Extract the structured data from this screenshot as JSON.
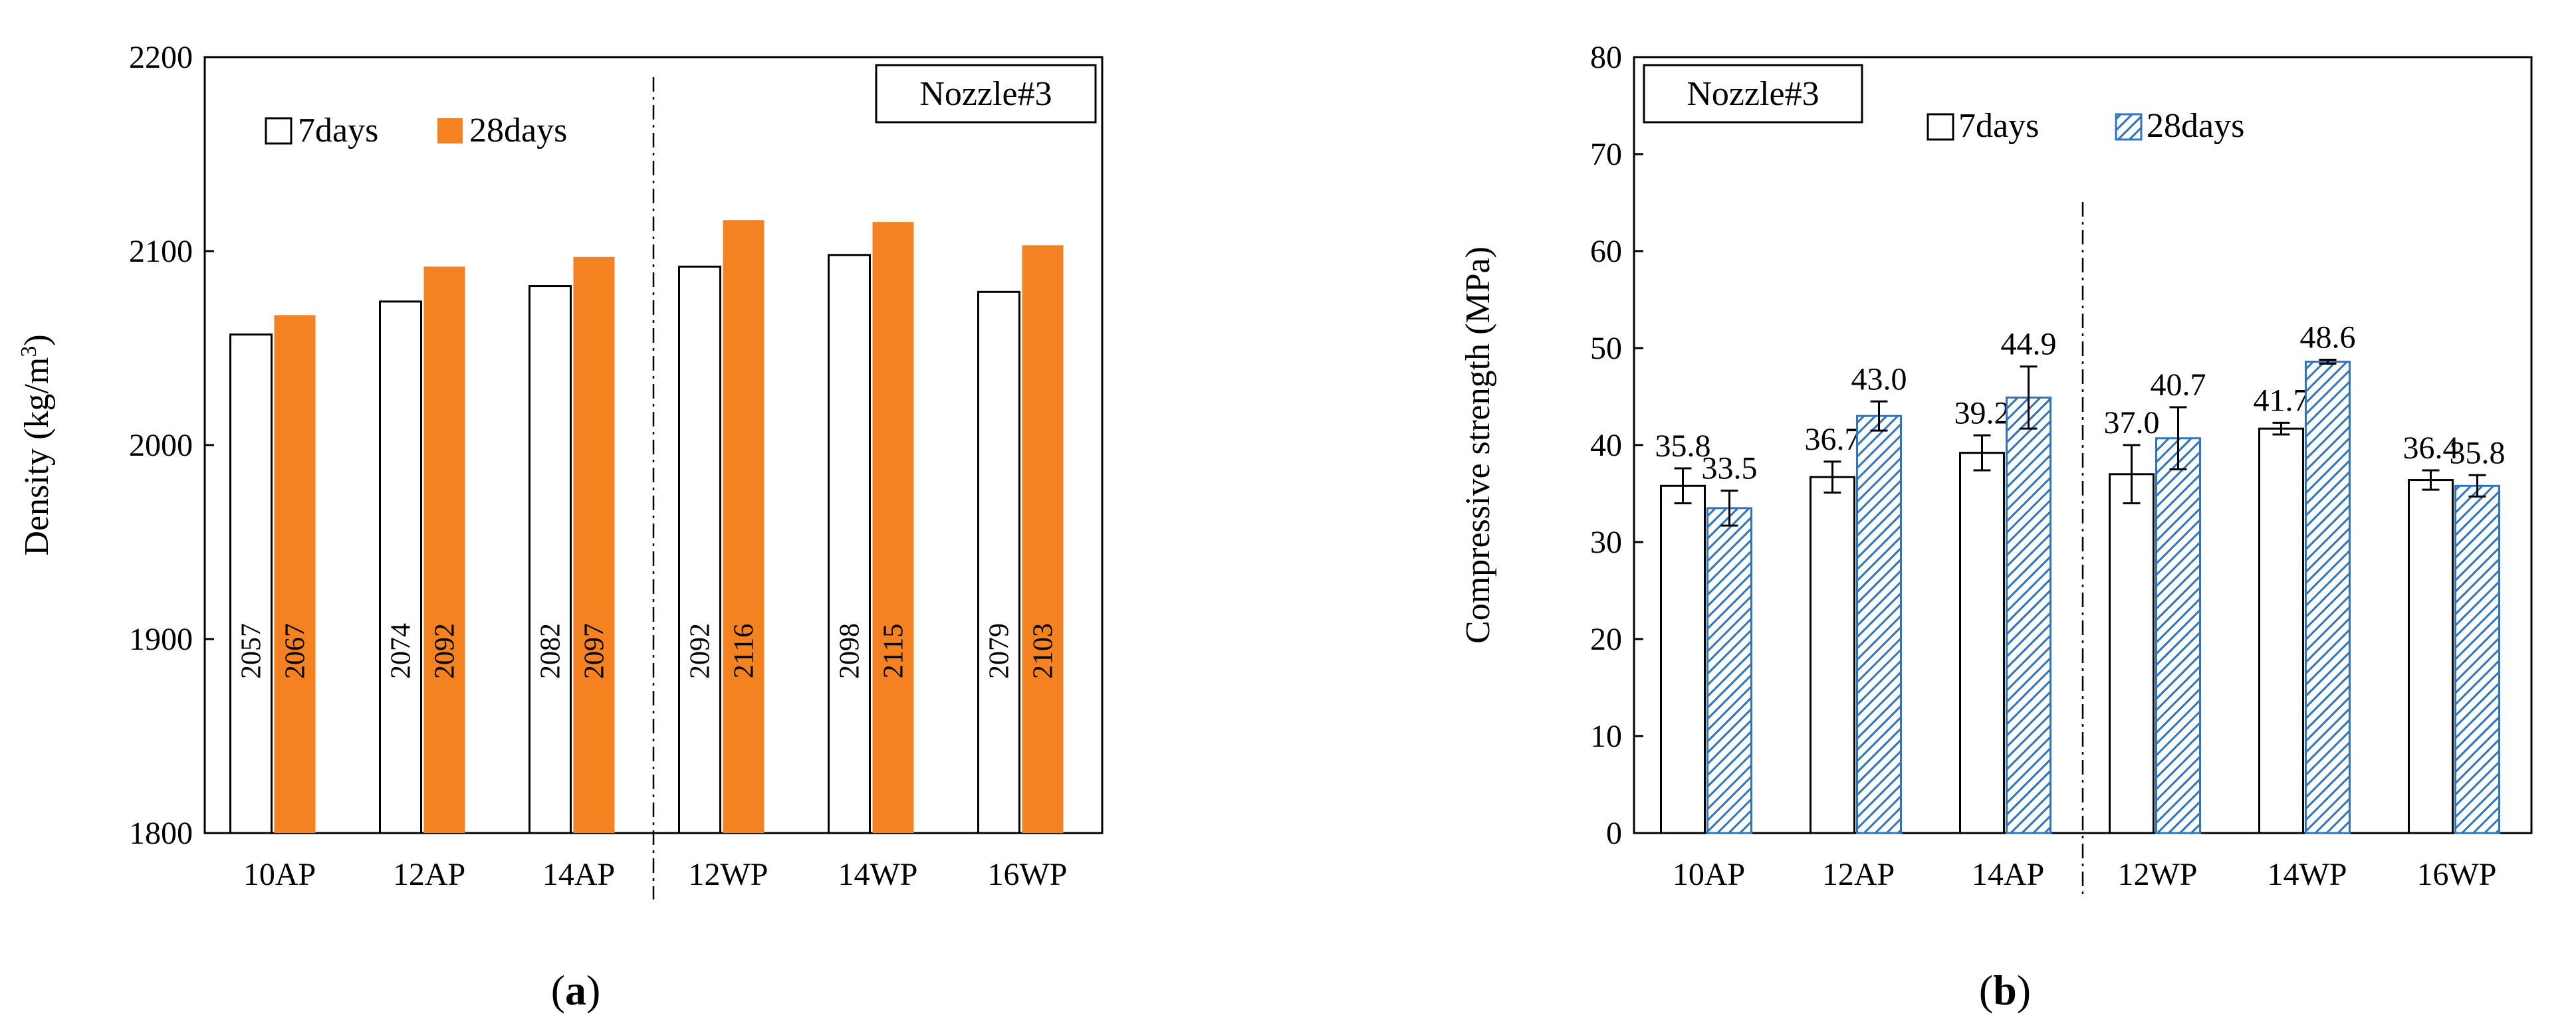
{
  "chart_data": [
    {
      "type": "bar",
      "panel": "a",
      "categories": [
        "10AP",
        "12AP",
        "14AP",
        "12WP",
        "14WP",
        "16WP"
      ],
      "series": [
        {
          "name": "7days",
          "values": [
            2057,
            2074,
            2082,
            2092,
            2098,
            2079
          ]
        },
        {
          "name": "28days",
          "values": [
            2067,
            2092,
            2097,
            2116,
            2115,
            2103
          ]
        }
      ],
      "value_labels": {
        "7days": [
          "2057",
          "2074",
          "2082",
          "2092",
          "2098",
          "2079"
        ],
        "28days": [
          "2067",
          "2092",
          "2097",
          "2116",
          "2115",
          "2103"
        ]
      },
      "ylabel_prefix": "Density (kg/m",
      "ylabel_sup": "3",
      "ylabel_suffix": ")",
      "ylim": [
        1800,
        2200
      ],
      "yticks": [
        "1800",
        "1900",
        "2000",
        "2100",
        "2200"
      ],
      "badge": "Nozzle#3",
      "legend": [
        "7days",
        "28days"
      ],
      "divider_after_index": 2,
      "panel_label_prefix": "(",
      "panel_label_letter": "a",
      "panel_label_suffix": ")"
    },
    {
      "type": "bar",
      "panel": "b",
      "categories": [
        "10AP",
        "12AP",
        "14AP",
        "12WP",
        "14WP",
        "16WP"
      ],
      "series": [
        {
          "name": "7days",
          "values": [
            35.8,
            36.7,
            39.2,
            37.0,
            41.7,
            36.4
          ],
          "errors": [
            1.8,
            1.6,
            1.8,
            3.0,
            0.6,
            1.0
          ]
        },
        {
          "name": "28days",
          "values": [
            33.5,
            43.0,
            44.9,
            40.7,
            48.6,
            35.8
          ],
          "errors": [
            1.8,
            1.5,
            3.2,
            3.2,
            0.2,
            1.1
          ]
        }
      ],
      "value_labels": {
        "7days": [
          "35.8",
          "36.7",
          "39.2",
          "37.0",
          "41.7",
          "36.4"
        ],
        "28days": [
          "33.5",
          "43.0",
          "44.9",
          "40.7",
          "48.6",
          "35.8"
        ]
      },
      "ylabel": "Compressive strength (MPa)",
      "ylim": [
        0,
        80
      ],
      "yticks": [
        "0",
        "10",
        "20",
        "30",
        "40",
        "50",
        "60",
        "70",
        "80"
      ],
      "badge": "Nozzle#3",
      "legend": [
        "7days",
        "28days"
      ],
      "divider_after_index": 2,
      "panel_label_prefix": "(",
      "panel_label_letter": "b",
      "panel_label_suffix": ")"
    }
  ],
  "colors": {
    "seven_days_fill": "#ffffff",
    "density_28_fill": "#f58220",
    "strength_28_hatch": "#2f74c0",
    "axis": "#000000"
  }
}
